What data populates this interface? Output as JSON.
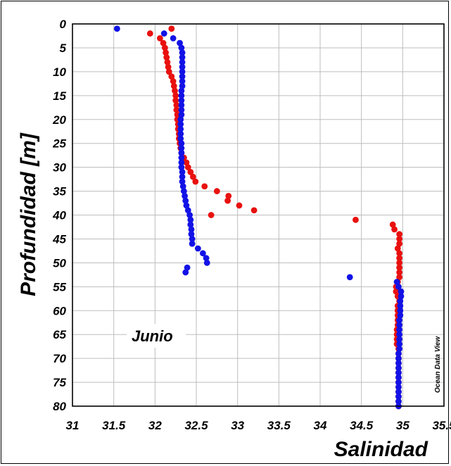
{
  "chart_data": {
    "type": "scatter",
    "title": "",
    "xlabel": "Salinidad",
    "ylabel": "Profundidad [m]",
    "annotation": "Junio",
    "credit": "Ocean Data View",
    "xlim": [
      31,
      35.5
    ],
    "ylim": [
      0,
      80
    ],
    "y_inverted": true,
    "grid": true,
    "x_ticks": [
      "31",
      "31.5",
      "32",
      "32.5",
      "33",
      "33.5",
      "34",
      "34.5",
      "35",
      "35.5"
    ],
    "y_ticks": [
      "0",
      "5",
      "10",
      "15",
      "20",
      "25",
      "30",
      "35",
      "40",
      "45",
      "50",
      "55",
      "60",
      "65",
      "70",
      "75",
      "80"
    ],
    "series": [
      {
        "color": "#e8110f",
        "points": [
          [
            32.2,
            1
          ],
          [
            31.94,
            2
          ],
          [
            32.06,
            3
          ],
          [
            32.1,
            4
          ],
          [
            32.12,
            5
          ],
          [
            32.13,
            6
          ],
          [
            32.14,
            7
          ],
          [
            32.15,
            8
          ],
          [
            32.16,
            9
          ],
          [
            32.17,
            10
          ],
          [
            32.2,
            11
          ],
          [
            32.22,
            12
          ],
          [
            32.23,
            13
          ],
          [
            32.24,
            14
          ],
          [
            32.25,
            15
          ],
          [
            32.25,
            16
          ],
          [
            32.26,
            17
          ],
          [
            32.26,
            18
          ],
          [
            32.27,
            19
          ],
          [
            32.27,
            20
          ],
          [
            32.28,
            21
          ],
          [
            32.28,
            22
          ],
          [
            32.29,
            23
          ],
          [
            32.29,
            24
          ],
          [
            32.3,
            25
          ],
          [
            32.31,
            26
          ],
          [
            32.32,
            27
          ],
          [
            32.35,
            28
          ],
          [
            32.38,
            29
          ],
          [
            32.4,
            30
          ],
          [
            32.43,
            31
          ],
          [
            32.46,
            32
          ],
          [
            32.49,
            33
          ],
          [
            32.6,
            34
          ],
          [
            32.75,
            35
          ],
          [
            32.89,
            36
          ],
          [
            32.88,
            37
          ],
          [
            33.02,
            38
          ],
          [
            33.2,
            39
          ],
          [
            32.68,
            40
          ],
          [
            34.43,
            41
          ],
          [
            34.88,
            42
          ],
          [
            34.9,
            43
          ],
          [
            34.96,
            44
          ],
          [
            34.96,
            45
          ],
          [
            34.96,
            46
          ],
          [
            34.94,
            47
          ],
          [
            34.96,
            48
          ],
          [
            34.96,
            49
          ],
          [
            34.96,
            50
          ],
          [
            34.96,
            51
          ],
          [
            34.96,
            52
          ],
          [
            34.96,
            53
          ],
          [
            34.94,
            54
          ],
          [
            34.92,
            55
          ],
          [
            34.92,
            56
          ],
          [
            34.94,
            57
          ],
          [
            34.96,
            58
          ],
          [
            34.94,
            59
          ],
          [
            34.94,
            60
          ],
          [
            34.94,
            61
          ],
          [
            34.94,
            62
          ],
          [
            34.94,
            63
          ],
          [
            34.93,
            64
          ],
          [
            34.93,
            65
          ],
          [
            34.93,
            66
          ],
          [
            34.93,
            67
          ],
          [
            34.95,
            68
          ],
          [
            34.95,
            69
          ],
          [
            34.95,
            70
          ],
          [
            34.95,
            71
          ],
          [
            34.95,
            72
          ],
          [
            34.95,
            73
          ],
          [
            34.95,
            74
          ],
          [
            34.95,
            75
          ],
          [
            34.95,
            76
          ],
          [
            34.95,
            77
          ],
          [
            34.95,
            78
          ],
          [
            34.95,
            79
          ],
          [
            34.95,
            80
          ]
        ]
      },
      {
        "color": "#1212e6",
        "points": [
          [
            31.54,
            1
          ],
          [
            32.11,
            2
          ],
          [
            32.22,
            3
          ],
          [
            32.3,
            4
          ],
          [
            32.32,
            5
          ],
          [
            32.33,
            6
          ],
          [
            32.33,
            7
          ],
          [
            32.33,
            8
          ],
          [
            32.33,
            9
          ],
          [
            32.33,
            10
          ],
          [
            32.33,
            11
          ],
          [
            32.33,
            12
          ],
          [
            32.33,
            13
          ],
          [
            32.32,
            14
          ],
          [
            32.32,
            15
          ],
          [
            32.32,
            16
          ],
          [
            32.32,
            17
          ],
          [
            32.32,
            18
          ],
          [
            32.32,
            19
          ],
          [
            32.31,
            20
          ],
          [
            32.31,
            21
          ],
          [
            32.31,
            22
          ],
          [
            32.31,
            23
          ],
          [
            32.31,
            24
          ],
          [
            32.32,
            25
          ],
          [
            32.32,
            26
          ],
          [
            32.32,
            27
          ],
          [
            32.32,
            28
          ],
          [
            32.32,
            29
          ],
          [
            32.32,
            30
          ],
          [
            32.33,
            31
          ],
          [
            32.33,
            32
          ],
          [
            32.33,
            33
          ],
          [
            32.34,
            34
          ],
          [
            32.35,
            35
          ],
          [
            32.36,
            36
          ],
          [
            32.37,
            37
          ],
          [
            32.38,
            38
          ],
          [
            32.4,
            39
          ],
          [
            32.42,
            40
          ],
          [
            32.43,
            41
          ],
          [
            32.43,
            42
          ],
          [
            32.44,
            43
          ],
          [
            32.44,
            44
          ],
          [
            32.45,
            45
          ],
          [
            32.45,
            46
          ],
          [
            32.52,
            47
          ],
          [
            32.58,
            48
          ],
          [
            32.62,
            49
          ],
          [
            32.63,
            50
          ],
          [
            32.39,
            51
          ],
          [
            32.37,
            52
          ],
          [
            34.36,
            53
          ],
          [
            34.93,
            54
          ],
          [
            34.95,
            55
          ],
          [
            34.98,
            56
          ],
          [
            34.98,
            57
          ],
          [
            34.97,
            58
          ],
          [
            34.97,
            59
          ],
          [
            34.97,
            60
          ],
          [
            34.97,
            61
          ],
          [
            34.96,
            62
          ],
          [
            34.96,
            63
          ],
          [
            34.96,
            64
          ],
          [
            34.96,
            65
          ],
          [
            34.96,
            66
          ],
          [
            34.96,
            67
          ],
          [
            34.96,
            68
          ],
          [
            34.95,
            69
          ],
          [
            34.95,
            70
          ],
          [
            34.95,
            71
          ],
          [
            34.95,
            72
          ],
          [
            34.95,
            73
          ],
          [
            34.95,
            74
          ],
          [
            34.95,
            75
          ],
          [
            34.95,
            76
          ],
          [
            34.95,
            77
          ],
          [
            34.95,
            78
          ],
          [
            34.95,
            79
          ],
          [
            34.95,
            80
          ]
        ]
      }
    ]
  }
}
